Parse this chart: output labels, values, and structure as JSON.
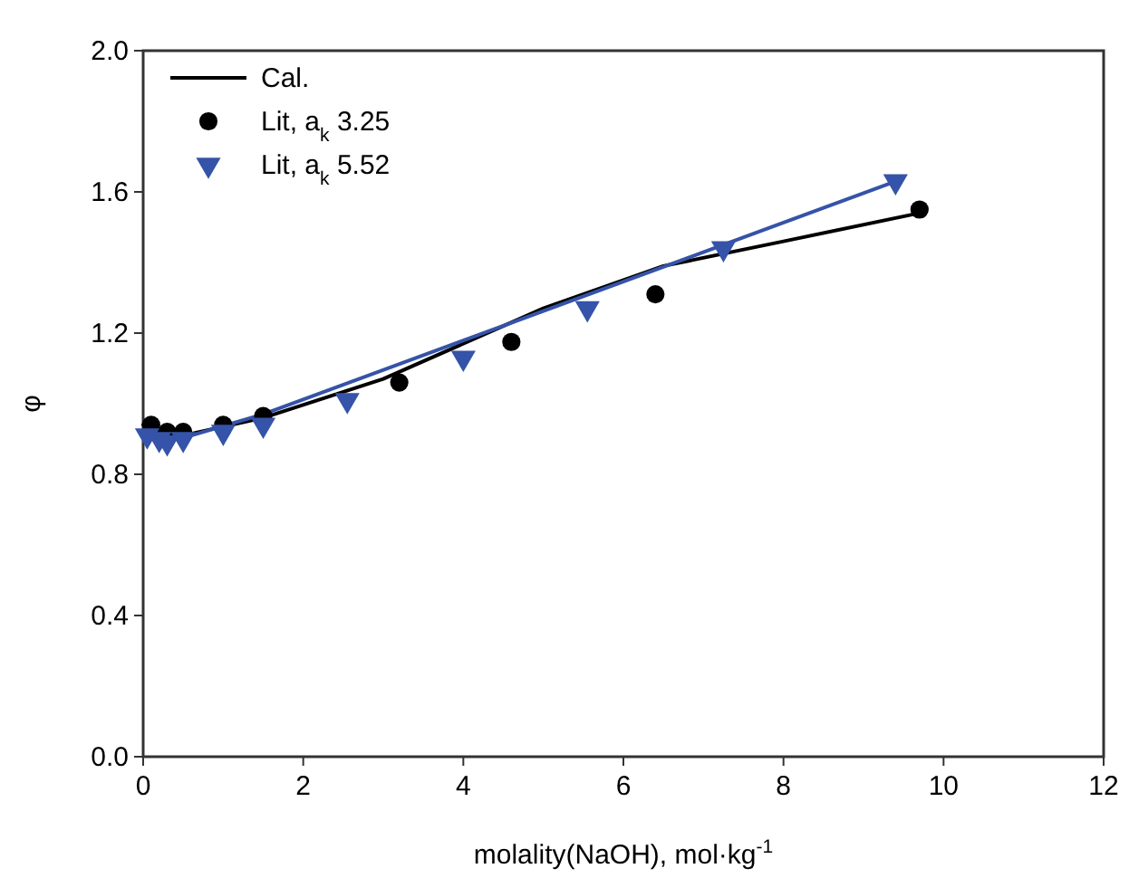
{
  "chart_data": {
    "type": "line",
    "xlabel": "molality(NaOH), mol·kg$^{-1}$",
    "ylabel": "φ",
    "xlim": [
      0,
      12
    ],
    "ylim": [
      0,
      2
    ],
    "xticks": [
      0,
      2,
      4,
      6,
      8,
      10,
      12
    ],
    "yticks": [
      {
        "value": 0,
        "label": "0.0"
      },
      {
        "value": 0.4,
        "label": "0.4"
      },
      {
        "value": 0.8,
        "label": "0.8"
      },
      {
        "value": 1.2,
        "label": "1.2"
      },
      {
        "value": 1.6,
        "label": "1.6"
      },
      {
        "value": 2,
        "label": "2.0"
      }
    ],
    "grid": false,
    "legend": "top left",
    "series": [
      {
        "name": "Cal.",
        "color": "#000000",
        "x": [
          0,
          0.3,
          0.6,
          1.5,
          3,
          5,
          6.5,
          8,
          9.7
        ],
        "values": [
          0.94,
          0.91,
          0.915,
          0.96,
          1.07,
          1.27,
          1.39,
          1.46,
          1.54
        ]
      },
      {
        "color": "#3553a8",
        "x": [
          0,
          0.3,
          0.6,
          1.5,
          9.4
        ],
        "values": [
          0.91,
          0.9,
          0.91,
          0.97,
          1.63
        ]
      },
      {
        "name": "Lit, a$_{k}$ 3.25",
        "type": "scatter",
        "marker": "circle",
        "color": "#000000",
        "x": [
          0.1,
          0.3,
          0.5,
          1.0,
          1.5,
          3.2,
          4.6,
          6.4,
          9.7
        ],
        "values": [
          0.94,
          0.92,
          0.92,
          0.94,
          0.965,
          1.06,
          1.175,
          1.31,
          1.55
        ]
      },
      {
        "name": "Lit, a$_{k}$ 5.52",
        "type": "scatter",
        "marker": "triangle",
        "color": "#3553a8",
        "x": [
          0.05,
          0.2,
          0.3,
          0.5,
          1.0,
          1.5,
          2.55,
          4.0,
          5.55,
          7.25,
          9.4
        ],
        "values": [
          0.91,
          0.9,
          0.89,
          0.9,
          0.92,
          0.94,
          1.01,
          1.13,
          1.27,
          1.44,
          1.63
        ]
      }
    ]
  }
}
